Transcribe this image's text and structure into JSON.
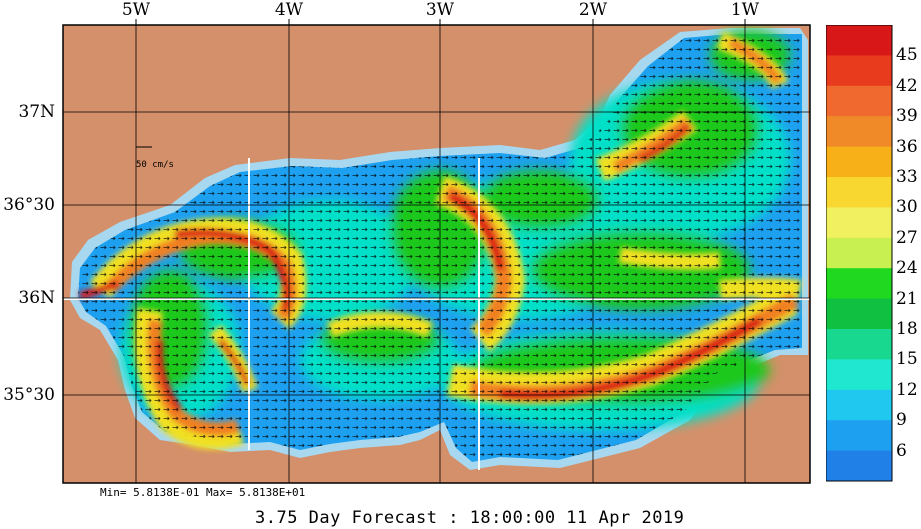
{
  "map": {
    "lon_labels": [
      "5W",
      "4W",
      "3W",
      "2W",
      "1W"
    ],
    "lat_labels": [
      "37N",
      "36°30",
      "36N",
      "35°30"
    ],
    "scale_arrow_label": "50 cm/s",
    "land_color": "#d4906a",
    "sea_colors": {
      "shelf": "#a8d8f0",
      "low": "#1ea0f0",
      "mid": "#00e0c8",
      "green": "#1ec81e",
      "yellow": "#f0e020",
      "orange": "#f08020",
      "red": "#d81818"
    }
  },
  "colorbar": {
    "labels": [
      "45",
      "42",
      "39",
      "36",
      "33",
      "30",
      "27",
      "24",
      "21",
      "18",
      "15",
      "12",
      "9",
      "6"
    ],
    "colors": [
      "#d81818",
      "#e83a1c",
      "#f06a30",
      "#f08a28",
      "#f8b018",
      "#f8d830",
      "#f0f060",
      "#c8f050",
      "#20d820",
      "#10c040",
      "#18d890",
      "#20e8d0",
      "#20c8f0",
      "#1ea0f0",
      "#2080e8"
    ]
  },
  "stats": {
    "minmax": "Min= 5.8138E-01  Max= 5.8138E+01"
  },
  "footer": {
    "forecast": "3.75 Day Forecast : 18:00:00  11 Apr 2019"
  }
}
